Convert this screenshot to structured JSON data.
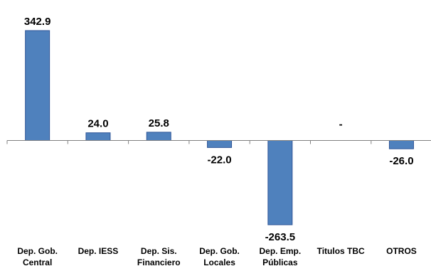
{
  "chart_data": {
    "type": "bar",
    "categories": [
      [
        "Dep. Gob.",
        "Central"
      ],
      [
        "Dep. IESS"
      ],
      [
        "Dep. Sis.",
        "Financiero"
      ],
      [
        "Dep. Gob.",
        "Locales"
      ],
      [
        "Dep. Emp.",
        "Públicas"
      ],
      [
        "Titulos TBC"
      ],
      [
        "OTROS"
      ]
    ],
    "values": [
      342.9,
      24.0,
      25.8,
      -22.0,
      -263.5,
      null,
      -26.0
    ],
    "data_labels": [
      "342.9",
      "24.0",
      "25.8",
      "-22.0",
      "-263.5",
      "-",
      "-26.0"
    ],
    "title": "",
    "xlabel": "",
    "ylabel": "",
    "ylim": [
      -263.5,
      342.9
    ],
    "grid": false,
    "legend": "none",
    "colors": {
      "bar_fill": "#4f81bd",
      "bar_stroke": "#2f5597",
      "axis": "#808080",
      "text": "#000000"
    }
  }
}
